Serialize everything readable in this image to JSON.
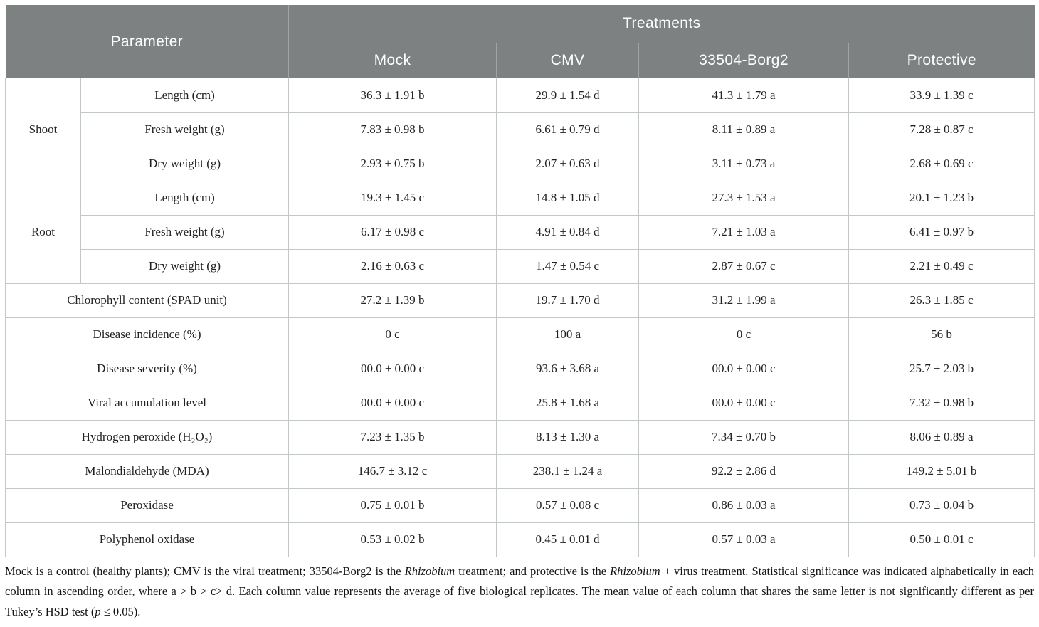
{
  "colors": {
    "header_bg": "#7d8182",
    "header_divider": "#a0a4a5",
    "header_text": "#ffffff",
    "body_border": "#c3c7c7",
    "body_text": "#212121",
    "page_bg": "#ffffff"
  },
  "table": {
    "header": {
      "parameter_label": "Parameter",
      "treatments_label": "Treatments",
      "treatment_columns": [
        "Mock",
        "CMV",
        "33504-Borg2",
        "Protective"
      ]
    },
    "groups": [
      {
        "group": "Shoot",
        "rows": [
          {
            "parameter": "Length (cm)",
            "values": [
              "36.3 ± 1.91 b",
              "29.9 ± 1.54 d",
              "41.3 ± 1.79 a",
              "33.9 ± 1.39 c"
            ]
          },
          {
            "parameter": "Fresh weight (g)",
            "values": [
              "7.83 ± 0.98 b",
              "6.61 ± 0.79 d",
              "8.11 ± 0.89 a",
              "7.28 ± 0.87 c"
            ]
          },
          {
            "parameter": "Dry weight (g)",
            "values": [
              "2.93 ± 0.75 b",
              "2.07 ± 0.63 d",
              "3.11 ± 0.73 a",
              "2.68 ± 0.69 c"
            ]
          }
        ]
      },
      {
        "group": "Root",
        "rows": [
          {
            "parameter": "Length (cm)",
            "values": [
              "19.3 ± 1.45 c",
              "14.8 ± 1.05 d",
              "27.3 ± 1.53 a",
              "20.1 ± 1.23 b"
            ]
          },
          {
            "parameter": "Fresh weight (g)",
            "values": [
              "6.17 ± 0.98 c",
              "4.91 ± 0.84 d",
              "7.21 ± 1.03 a",
              "6.41 ± 0.97 b"
            ]
          },
          {
            "parameter": "Dry weight (g)",
            "values": [
              "2.16 ± 0.63 c",
              "1.47 ± 0.54 c",
              "2.87 ± 0.67 c",
              "2.21 ± 0.49 c"
            ]
          }
        ]
      }
    ],
    "single_rows": [
      {
        "parameter": "Chlorophyll content (SPAD unit)",
        "values": [
          "27.2 ± 1.39 b",
          "19.7 ± 1.70 d",
          "31.2 ± 1.99 a",
          "26.3 ± 1.85 c"
        ]
      },
      {
        "parameter": "Disease incidence (%)",
        "values": [
          "0 c",
          "100 a",
          "0 c",
          "56 b"
        ]
      },
      {
        "parameter": "Disease severity (%)",
        "values": [
          "00.0 ± 0.00 c",
          "93.6 ± 3.68 a",
          "00.0 ± 0.00 c",
          "25.7 ± 2.03 b"
        ]
      },
      {
        "parameter": "Viral accumulation level",
        "values": [
          "00.0 ± 0.00 c",
          "25.8 ± 1.68 a",
          "00.0 ± 0.00 c",
          "7.32 ± 0.98 b"
        ]
      },
      {
        "parameter": "Hydrogen peroxide (H₂O₂)",
        "values": [
          "7.23 ± 1.35 b",
          "8.13 ± 1.30 a",
          "7.34 ± 0.70 b",
          "8.06 ± 0.89 a"
        ]
      },
      {
        "parameter": "Malondialdehyde (MDA)",
        "values": [
          "146.7 ± 3.12 c",
          "238.1 ± 1.24 a",
          "92.2 ± 2.86 d",
          "149.2 ± 5.01 b"
        ]
      },
      {
        "parameter": "Peroxidase",
        "values": [
          "0.75 ± 0.01 b",
          "0.57 ± 0.08 c",
          "0.86 ± 0.03 a",
          "0.73 ± 0.04 b"
        ]
      },
      {
        "parameter": "Polyphenol oxidase",
        "values": [
          "0.53 ± 0.02 b",
          "0.45 ± 0.01 d",
          "0.57 ± 0.03 a",
          "0.50 ± 0.01 c"
        ]
      }
    ]
  },
  "footnote": {
    "segments": [
      {
        "text": "Mock is a control (healthy plants); CMV is the viral treatment; 33504-Borg2 is the ",
        "italic": false
      },
      {
        "text": "Rhizobium",
        "italic": true
      },
      {
        "text": " treatment; and protective is the ",
        "italic": false
      },
      {
        "text": "Rhizobium",
        "italic": true
      },
      {
        "text": " + virus treatment. Statistical significance was indicated alphabetically in each column in ascending order, where a > b > c> d. Each column value represents the average of five biological replicates. The mean value of each column that shares the same letter is not significantly different as per Tukey’s HSD test (",
        "italic": false
      },
      {
        "text": "p",
        "italic": true
      },
      {
        "text": " ≤ 0.05).",
        "italic": false
      }
    ]
  }
}
